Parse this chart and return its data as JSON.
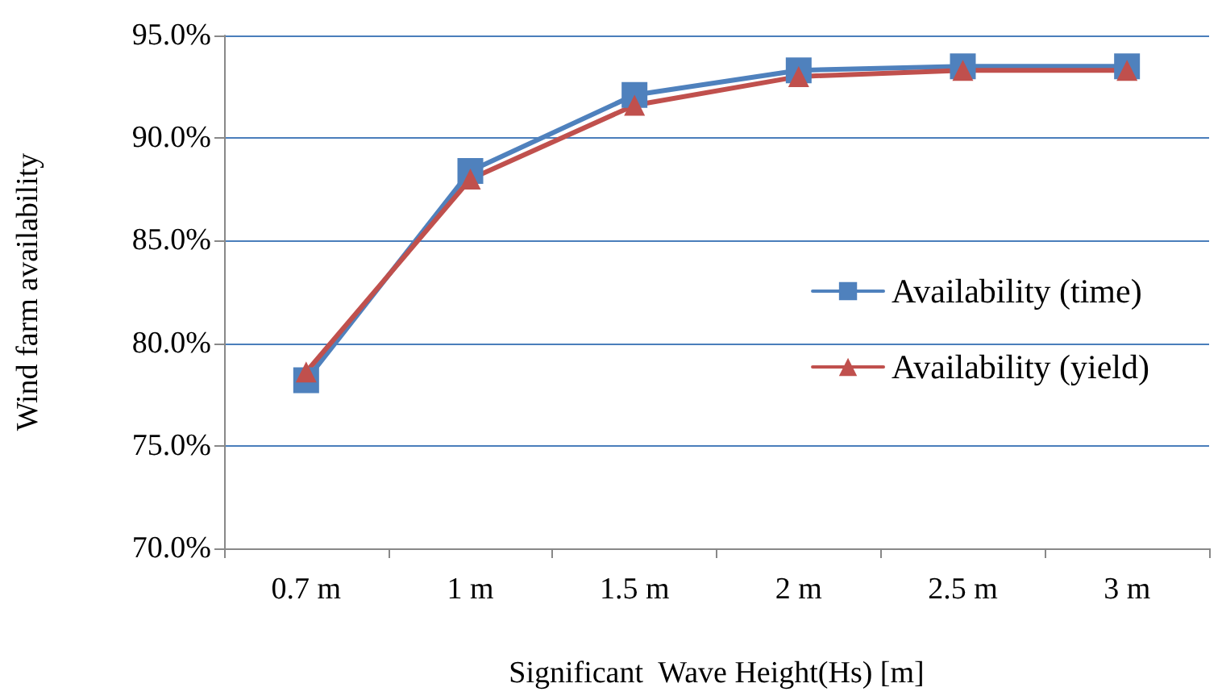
{
  "chart_data": {
    "type": "line",
    "xlabel": "Significant  Wave Height(Hs) [m]",
    "ylabel": "Wind farm availability",
    "categories": [
      "0.7 m",
      "1 m",
      "1.5 m",
      "2 m",
      "2.5 m",
      "3 m"
    ],
    "series": [
      {
        "name": "Availability (time)",
        "color": "#4f81bd",
        "marker": "square",
        "values": [
          78.2,
          88.4,
          92.1,
          93.3,
          93.5,
          93.5
        ]
      },
      {
        "name": "Availability (yield)",
        "color": "#c0504d",
        "marker": "triangle",
        "values": [
          78.6,
          88.0,
          91.6,
          93.0,
          93.3,
          93.3
        ]
      }
    ],
    "ylim": [
      70,
      95
    ],
    "yticks": [
      {
        "value": 70,
        "label": "70.0%"
      },
      {
        "value": 75,
        "label": "75.0%"
      },
      {
        "value": 80,
        "label": "80.0%"
      },
      {
        "value": 85,
        "label": "85.0%"
      },
      {
        "value": 90,
        "label": "90.0%"
      },
      {
        "value": 95,
        "label": "95.0%"
      }
    ],
    "grid": "y",
    "legend": "right",
    "line_style": "solid"
  }
}
